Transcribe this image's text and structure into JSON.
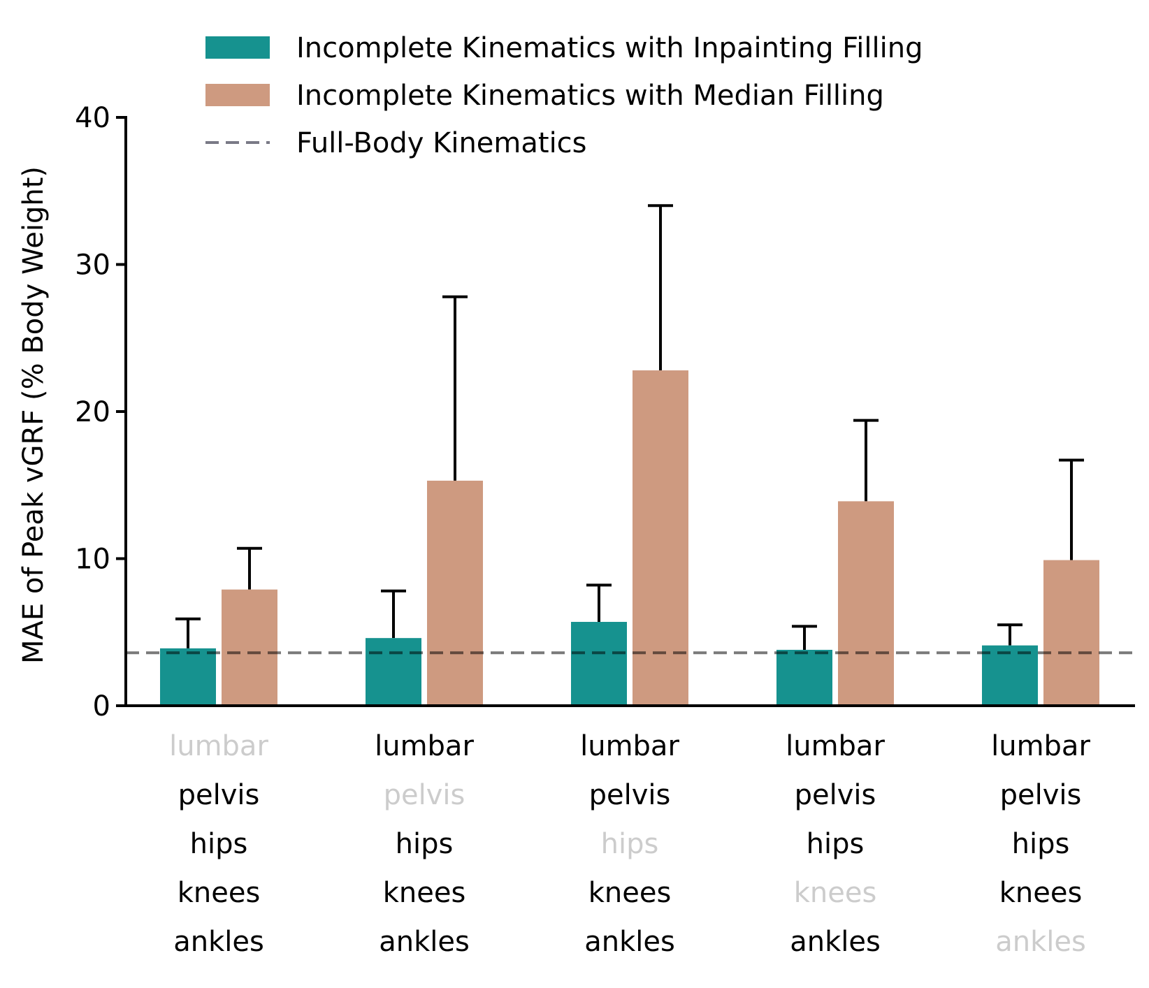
{
  "chart_data": {
    "type": "bar",
    "title": "",
    "xlabel": "",
    "ylabel": "MAE of Peak vGRF (% Body Weight)",
    "ylim": [
      0,
      40
    ],
    "yticks": [
      "0",
      "10",
      "20",
      "30",
      "40"
    ],
    "joint_names": [
      "lumbar",
      "pelvis",
      "hips",
      "knees",
      "ankles"
    ],
    "groups": [
      {
        "omitted_joint": "lumbar"
      },
      {
        "omitted_joint": "pelvis"
      },
      {
        "omitted_joint": "hips"
      },
      {
        "omitted_joint": "knees"
      },
      {
        "omitted_joint": "ankles"
      }
    ],
    "series": [
      {
        "name": "Incomplete Kinematics with Inpainting Filling",
        "color": "#16928f",
        "values": [
          3.9,
          4.6,
          5.7,
          3.8,
          4.1
        ],
        "error_upper": [
          5.9,
          7.8,
          8.2,
          5.4,
          5.5
        ]
      },
      {
        "name": "Incomplete Kinematics with Median Filling",
        "color": "#ce9a80",
        "values": [
          7.9,
          15.3,
          22.8,
          13.9,
          9.9
        ],
        "error_upper": [
          10.7,
          27.8,
          34.0,
          19.4,
          16.7
        ]
      }
    ],
    "reference_line": {
      "name": "Full-Body Kinematics",
      "value": 3.6,
      "color": "#7a7a86",
      "style": "dashed"
    },
    "label_colors": {
      "included": "#000000",
      "omitted": "#cccccc"
    },
    "legend_position": "top",
    "grid": false
  }
}
